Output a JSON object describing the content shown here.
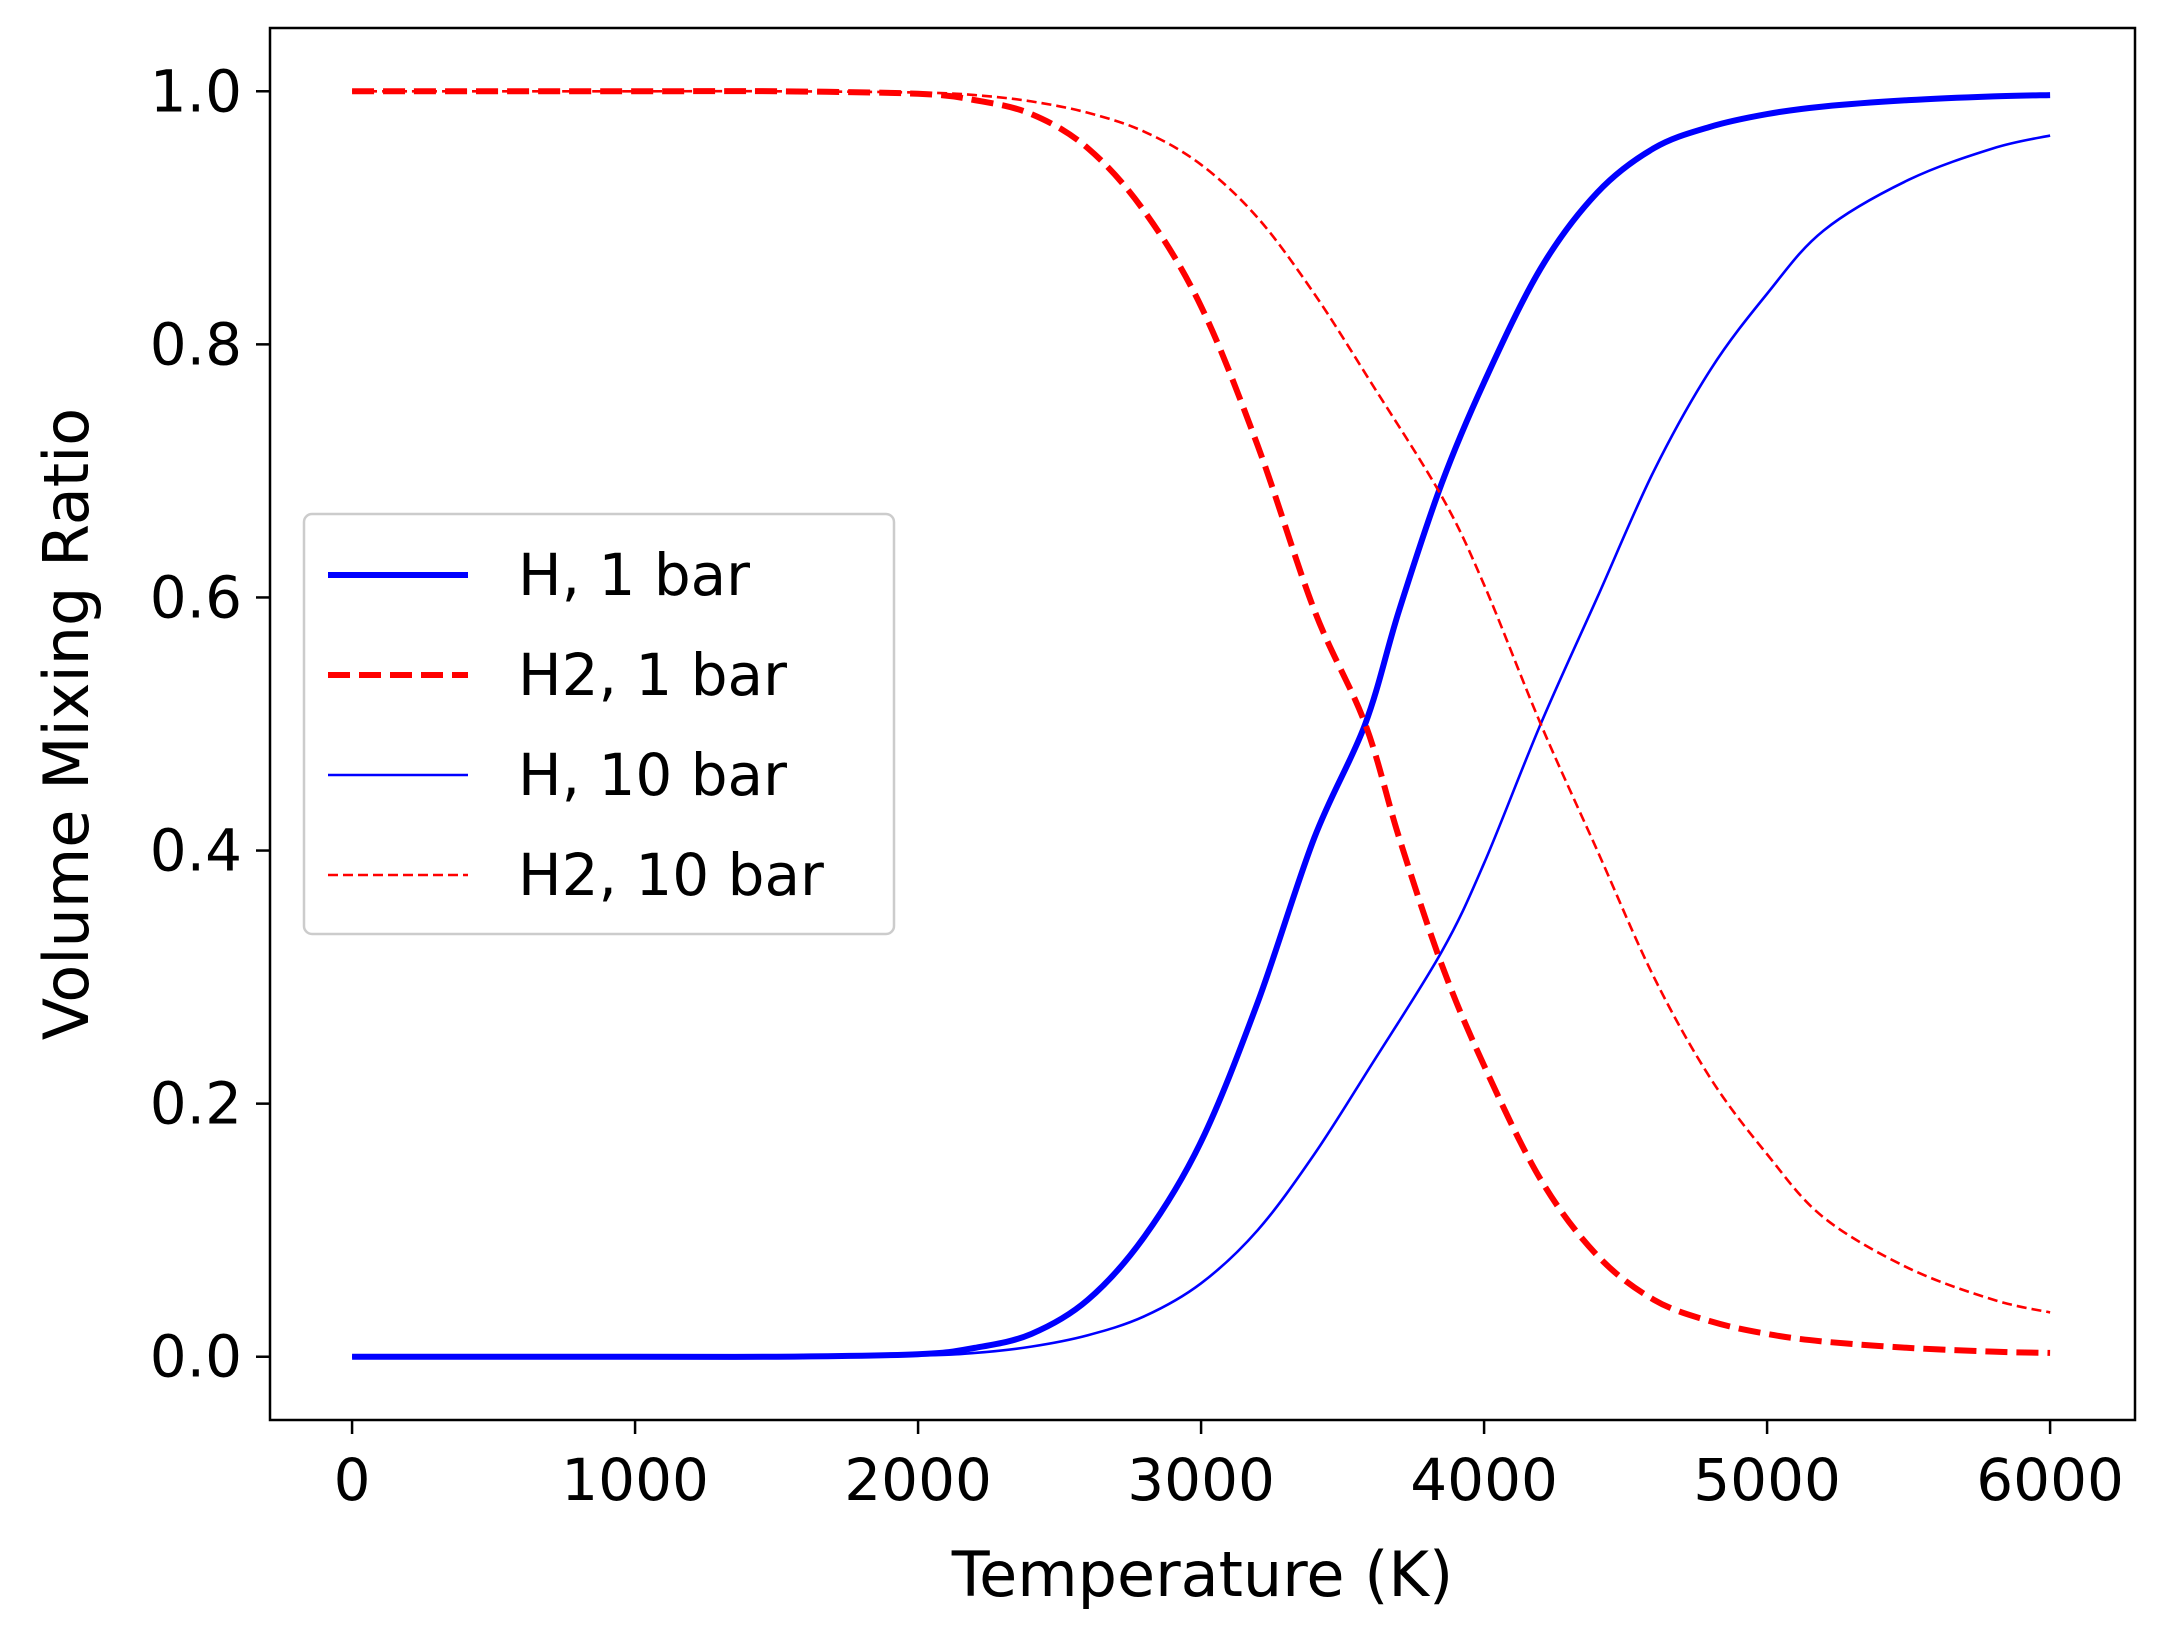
{
  "chart_data": {
    "type": "line",
    "title": "",
    "xlabel": "Temperature (K)",
    "ylabel": "Volume Mixing Ratio",
    "xlim": [
      -290,
      6300
    ],
    "ylim": [
      -0.05,
      1.05
    ],
    "xticks": [
      0,
      1000,
      2000,
      3000,
      4000,
      5000,
      6000
    ],
    "xtick_labels": [
      "0",
      "1000",
      "2000",
      "3000",
      "4000",
      "5000",
      "6000"
    ],
    "yticks": [
      0.0,
      0.2,
      0.4,
      0.6,
      0.8,
      1.0
    ],
    "ytick_labels": [
      "0.0",
      "0.2",
      "0.4",
      "0.6",
      "0.8",
      "1.0"
    ],
    "grid": false,
    "legend_position": "center-left",
    "series": [
      {
        "name": "H, 1 bar",
        "color": "#0000ff",
        "style": "solid",
        "weight": "thick",
        "x": [
          0,
          1000,
          1500,
          2000,
          2200,
          2400,
          2600,
          2800,
          3000,
          3200,
          3400,
          3580,
          3700,
          3850,
          4000,
          4200,
          4400,
          4600,
          4800,
          5000,
          5200,
          5500,
          5800,
          6000
        ],
        "y": [
          0.0,
          0.0,
          0.0,
          0.002,
          0.007,
          0.018,
          0.045,
          0.095,
          0.17,
          0.28,
          0.41,
          0.5,
          0.59,
          0.69,
          0.77,
          0.86,
          0.92,
          0.955,
          0.972,
          0.982,
          0.988,
          0.993,
          0.996,
          0.997
        ]
      },
      {
        "name": "H2, 1 bar",
        "color": "#ff0000",
        "style": "dashed",
        "weight": "thick",
        "x": [
          0,
          1000,
          1500,
          2000,
          2200,
          2400,
          2600,
          2800,
          3000,
          3200,
          3400,
          3580,
          3700,
          3850,
          4000,
          4200,
          4400,
          4600,
          4800,
          5000,
          5200,
          5500,
          5800,
          6000
        ],
        "y": [
          1.0,
          1.0,
          1.0,
          0.998,
          0.993,
          0.982,
          0.955,
          0.905,
          0.83,
          0.72,
          0.59,
          0.5,
          0.41,
          0.31,
          0.23,
          0.14,
          0.08,
          0.045,
          0.028,
          0.018,
          0.012,
          0.007,
          0.004,
          0.003
        ]
      },
      {
        "name": "H, 10 bar",
        "color": "#0000ff",
        "style": "solid",
        "weight": "thin",
        "x": [
          0,
          1000,
          1500,
          2000,
          2200,
          2400,
          2600,
          2800,
          3000,
          3200,
          3400,
          3600,
          3850,
          4000,
          4200,
          4400,
          4600,
          4800,
          5000,
          5200,
          5500,
          5800,
          6000
        ],
        "y": [
          0.0,
          0.0,
          0.0,
          0.001,
          0.003,
          0.008,
          0.017,
          0.032,
          0.058,
          0.1,
          0.16,
          0.23,
          0.32,
          0.39,
          0.5,
          0.6,
          0.7,
          0.78,
          0.84,
          0.89,
          0.93,
          0.955,
          0.965
        ]
      },
      {
        "name": "H2, 10 bar",
        "color": "#ff0000",
        "style": "dashed",
        "weight": "thin",
        "x": [
          0,
          1000,
          1500,
          2000,
          2200,
          2400,
          2600,
          2800,
          3000,
          3200,
          3400,
          3600,
          3850,
          4000,
          4200,
          4400,
          4600,
          4800,
          5000,
          5200,
          5500,
          5800,
          6000
        ],
        "y": [
          1.0,
          1.0,
          1.0,
          0.999,
          0.997,
          0.992,
          0.983,
          0.968,
          0.942,
          0.9,
          0.84,
          0.77,
          0.68,
          0.61,
          0.5,
          0.4,
          0.3,
          0.22,
          0.16,
          0.11,
          0.07,
          0.045,
          0.035
        ]
      }
    ]
  }
}
